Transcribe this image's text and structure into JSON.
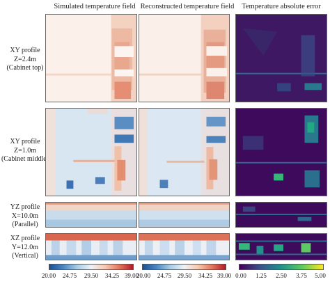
{
  "columns": {
    "simulated": "Simulated temperature field",
    "reconstructed": "Reconstructed temperature field",
    "error": "Temperature absolute error"
  },
  "rows": [
    {
      "line1": "XY profile",
      "line2": "Z=2.4m",
      "line3": "(Cabinet top)"
    },
    {
      "line1": "XY profile",
      "line2": "Z=1.0m",
      "line3": "(Cabinet middle)"
    },
    {
      "line1": "YZ profile",
      "line2": "X=10.0m",
      "line3": "(Parallel)"
    },
    {
      "line1": "XZ profile",
      "line2": "Y=12.0m",
      "line3": "(Vertical)"
    }
  ],
  "chart_data": {
    "type": "heatmap",
    "temperature_colorbar": {
      "ticks": [
        "20.00",
        "24.75",
        "29.50",
        "34.25",
        "39.00"
      ],
      "range": [
        20.0,
        39.0
      ],
      "colormap": "blue-white-red"
    },
    "error_colorbar": {
      "ticks": [
        "0.00",
        "1.25",
        "2.50",
        "3.75",
        "5.00"
      ],
      "range": [
        0.0,
        5.0
      ],
      "colormap": "viridis"
    }
  }
}
